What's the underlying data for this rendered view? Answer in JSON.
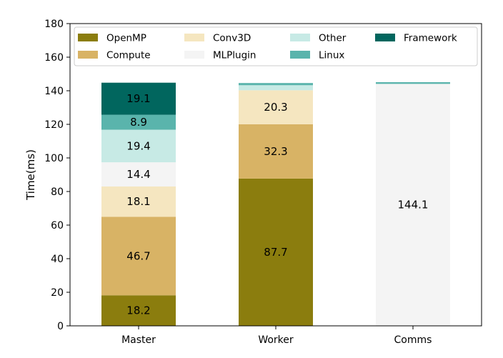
{
  "chart_data": {
    "type": "bar",
    "stacked": true,
    "categories": [
      "Master",
      "Worker",
      "Comms"
    ],
    "ylabel": "Time(ms)",
    "xlabel": "",
    "ylim": [
      0,
      180
    ],
    "yticks": [
      0,
      20,
      40,
      60,
      80,
      100,
      120,
      140,
      160,
      180
    ],
    "grid": false,
    "legend": {
      "position": "top",
      "columns": 4,
      "entry_order": [
        "OpenMP",
        "Compute",
        "Conv3D",
        "MLPlugin",
        "Other",
        "Linux",
        "Framework"
      ]
    },
    "series": [
      {
        "name": "OpenMP",
        "color": "#8b7d0e",
        "values": [
          18.2,
          87.7,
          0
        ]
      },
      {
        "name": "Compute",
        "color": "#d8b365",
        "values": [
          46.7,
          32.3,
          0
        ]
      },
      {
        "name": "Conv3D",
        "color": "#f5e6c0",
        "values": [
          18.1,
          20.3,
          0
        ]
      },
      {
        "name": "MLPlugin",
        "color": "#f4f4f4",
        "values": [
          14.4,
          0,
          144.1
        ]
      },
      {
        "name": "Other",
        "color": "#c7eae5",
        "values": [
          19.4,
          3.0,
          0
        ]
      },
      {
        "name": "Linux",
        "color": "#5ab4ac",
        "values": [
          8.9,
          1.3,
          1.0
        ]
      },
      {
        "name": "Framework",
        "color": "#01665e",
        "values": [
          19.1,
          0,
          0
        ]
      }
    ],
    "data_labels": [
      [
        "18.2",
        "46.7",
        "18.1",
        "14.4",
        "19.4",
        "8.9",
        "19.1"
      ],
      [
        "87.7",
        "32.3",
        "20.3",
        null,
        null,
        null,
        null
      ],
      [
        null,
        null,
        null,
        "144.1",
        null,
        null,
        null
      ]
    ]
  }
}
